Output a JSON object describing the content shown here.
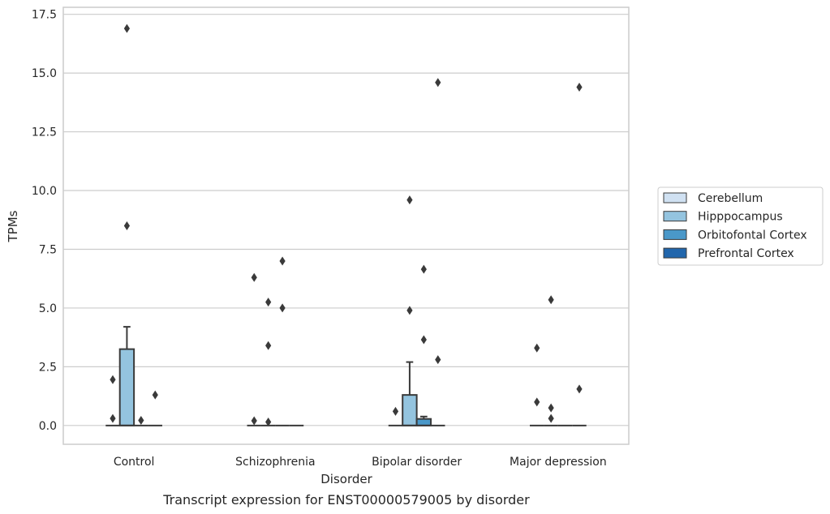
{
  "chart_data": {
    "type": "box",
    "xlabel": "Disorder",
    "ylabel": "TPMs",
    "caption": "Transcript expression for ENST00000579005 by disorder",
    "ylim": [
      -0.8,
      17.8
    ],
    "yticks": [
      0.0,
      2.5,
      5.0,
      7.5,
      10.0,
      12.5,
      15.0,
      17.5
    ],
    "ytick_labels": [
      "0.0",
      "2.5",
      "5.0",
      "7.5",
      "10.0",
      "12.5",
      "15.0",
      "17.5"
    ],
    "grid": true,
    "legend_position": "right",
    "categories": [
      "Control",
      "Schizophrenia",
      "Bipolar disorder",
      "Major depression"
    ],
    "series": [
      {
        "name": "Cerebellum",
        "color": "#d0e1f2",
        "boxes": [
          {
            "q1": 0,
            "median": 0,
            "q3": 0,
            "whislo": 0,
            "whishi": 0,
            "fliers": [
              0.3,
              1.95
            ]
          },
          {
            "q1": 0,
            "median": 0,
            "q3": 0,
            "whislo": 0,
            "whishi": 0,
            "fliers": [
              0.2,
              6.3
            ]
          },
          {
            "q1": 0,
            "median": 0,
            "q3": 0,
            "whislo": 0,
            "whishi": 0,
            "fliers": [
              0.6
            ]
          },
          {
            "q1": 0,
            "median": 0,
            "q3": 0,
            "whislo": 0,
            "whishi": 0,
            "fliers": [
              1.0,
              3.3
            ]
          }
        ]
      },
      {
        "name": "Hipppocampus",
        "color": "#94c4df",
        "boxes": [
          {
            "q1": 0,
            "median": 0,
            "q3": 3.25,
            "whislo": 0,
            "whishi": 4.2,
            "fliers": [
              8.5,
              16.9
            ]
          },
          {
            "q1": 0,
            "median": 0,
            "q3": 0,
            "whislo": 0,
            "whishi": 0,
            "fliers": [
              0.15,
              3.4,
              5.25
            ]
          },
          {
            "q1": 0,
            "median": 0,
            "q3": 1.3,
            "whislo": 0,
            "whishi": 2.7,
            "fliers": [
              4.9,
              9.6
            ]
          },
          {
            "q1": 0,
            "median": 0,
            "q3": 0,
            "whislo": 0,
            "whishi": 0,
            "fliers": [
              0.3,
              0.75,
              5.35
            ]
          }
        ]
      },
      {
        "name": "Orbitofontal Cortex",
        "color": "#4a98c9",
        "boxes": [
          {
            "q1": 0,
            "median": 0,
            "q3": 0,
            "whislo": 0,
            "whishi": 0,
            "fliers": [
              0.22
            ]
          },
          {
            "q1": 0,
            "median": 0,
            "q3": 0,
            "whislo": 0,
            "whishi": 0,
            "fliers": [
              5.0,
              7.0
            ]
          },
          {
            "q1": 0,
            "median": 0,
            "q3": 0.28,
            "whislo": 0,
            "whishi": 0.38,
            "fliers": [
              3.65,
              6.65
            ]
          },
          {
            "q1": 0,
            "median": 0,
            "q3": 0,
            "whislo": 0,
            "whishi": 0,
            "fliers": []
          }
        ]
      },
      {
        "name": "Prefrontal Cortex",
        "color": "#2166ac",
        "boxes": [
          {
            "q1": 0,
            "median": 0,
            "q3": 0,
            "whislo": 0,
            "whishi": 0,
            "fliers": [
              1.3
            ]
          },
          {
            "q1": 0,
            "median": 0,
            "q3": 0,
            "whislo": 0,
            "whishi": 0,
            "fliers": []
          },
          {
            "q1": 0,
            "median": 0,
            "q3": 0,
            "whislo": 0,
            "whishi": 0,
            "fliers": [
              2.8,
              14.6
            ]
          },
          {
            "q1": 0,
            "median": 0,
            "q3": 0,
            "whislo": 0,
            "whishi": 0,
            "fliers": [
              1.55,
              14.4
            ]
          }
        ]
      }
    ]
  }
}
